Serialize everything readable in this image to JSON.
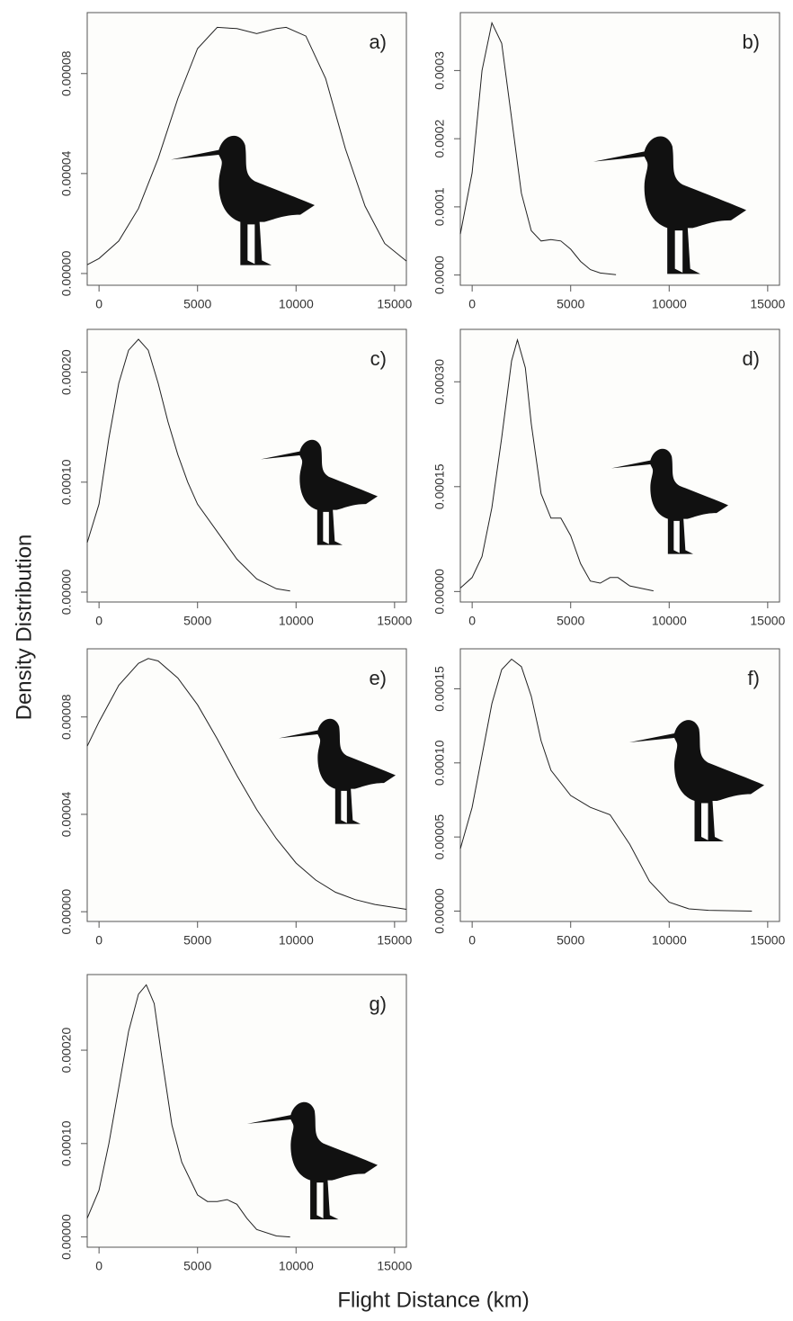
{
  "xlabel": "Flight Distance (km)",
  "ylabel": "Density Distribution",
  "chart_data": [
    {
      "type": "line",
      "label": "a)",
      "xlim": [
        -600,
        15600
      ],
      "ylim": [
        -4.7e-06,
        0.0001044
      ],
      "xticks": [
        0,
        5000,
        10000,
        15000
      ],
      "yticks": [
        {
          "value": 0,
          "label": "0.00000"
        },
        4e-05,
        8e-05
      ],
      "x": [
        -600,
        0,
        1000,
        2000,
        3000,
        4000,
        5000,
        6000,
        7000,
        8000,
        9000,
        9500,
        10500,
        11500,
        12500,
        13500,
        14500,
        15600
      ],
      "values": [
        3.5e-06,
        6e-06,
        1.3e-05,
        2.6e-05,
        4.6e-05,
        7e-05,
        9e-05,
        9.85e-05,
        9.8e-05,
        9.6e-05,
        9.8e-05,
        9.85e-05,
        9.5e-05,
        7.8e-05,
        5e-05,
        2.7e-05,
        1.2e-05,
        5e-06
      ]
    },
    {
      "type": "line",
      "label": "b)",
      "xlim": [
        -600,
        15600
      ],
      "ylim": [
        -1.5e-05,
        0.000385
      ],
      "xticks": [
        0,
        5000,
        10000,
        15000
      ],
      "yticks": [
        {
          "value": 0,
          "label": "0.0000"
        },
        0.0001,
        0.0002,
        0.0003
      ],
      "x": [
        -600,
        0,
        500,
        1000,
        1500,
        2000,
        2500,
        3000,
        3500,
        4000,
        4500,
        5000,
        5500,
        6000,
        6500,
        7300
      ],
      "values": [
        6e-05,
        0.00015,
        0.0003,
        0.00037,
        0.00034,
        0.00023,
        0.00012,
        6.5e-05,
        5e-05,
        5.2e-05,
        5e-05,
        3.8e-05,
        2e-05,
        8e-06,
        3e-06,
        5e-07
      ]
    },
    {
      "type": "line",
      "label": "c)",
      "xlim": [
        -600,
        15600
      ],
      "ylim": [
        -9e-06,
        0.000239
      ],
      "xticks": [
        0,
        5000,
        10000,
        15000
      ],
      "yticks": [
        {
          "value": 0,
          "label": "0.00000"
        },
        {
          "value": 0.0001,
          "label": "0.00010"
        },
        {
          "value": 0.0002,
          "label": "0.00020"
        }
      ],
      "x": [
        -600,
        0,
        500,
        1000,
        1500,
        2000,
        2500,
        3000,
        3500,
        4000,
        4500,
        5000,
        6000,
        7000,
        8000,
        9000,
        9700
      ],
      "values": [
        4.5e-05,
        8e-05,
        0.00014,
        0.00019,
        0.00022,
        0.00023,
        0.00022,
        0.00019,
        0.000155,
        0.000125,
        0.0001,
        8e-05,
        5.5e-05,
        3e-05,
        1.2e-05,
        3e-06,
        1e-06
      ]
    },
    {
      "type": "line",
      "label": "d)",
      "xlim": [
        -600,
        15600
      ],
      "ylim": [
        -1.5e-05,
        0.000375
      ],
      "xticks": [
        0,
        5000,
        10000,
        15000
      ],
      "yticks": [
        {
          "value": 0,
          "label": "0.00000"
        },
        0.00015,
        {
          "value": 0.0003,
          "label": "0.00030"
        }
      ],
      "x": [
        -600,
        0,
        500,
        1000,
        1500,
        2000,
        2300,
        2700,
        3000,
        3500,
        4000,
        4500,
        5000,
        5500,
        6000,
        6500,
        7000,
        7400,
        8000,
        9200
      ],
      "values": [
        5e-06,
        2e-05,
        5e-05,
        0.00012,
        0.00022,
        0.00033,
        0.00036,
        0.00032,
        0.00024,
        0.00014,
        0.000105,
        0.000105,
        8e-05,
        4e-05,
        1.5e-05,
        1.2e-05,
        2e-05,
        2e-05,
        8e-06,
        1e-06
      ]
    },
    {
      "type": "line",
      "label": "e)",
      "xlim": [
        -600,
        15600
      ],
      "ylim": [
        -4e-06,
        0.000108
      ],
      "xticks": [
        0,
        5000,
        10000,
        15000
      ],
      "yticks": [
        {
          "value": 0,
          "label": "0.00000"
        },
        4e-05,
        8e-05
      ],
      "x": [
        -600,
        0,
        1000,
        2000,
        2500,
        3000,
        4000,
        5000,
        6000,
        7000,
        8000,
        9000,
        10000,
        11000,
        12000,
        13000,
        14000,
        15600
      ],
      "values": [
        6.8e-05,
        7.8e-05,
        9.3e-05,
        0.000102,
        0.000104,
        0.000103,
        9.6e-05,
        8.5e-05,
        7.1e-05,
        5.6e-05,
        4.2e-05,
        3e-05,
        2e-05,
        1.3e-05,
        8e-06,
        5e-06,
        3e-06,
        1e-06
      ]
    },
    {
      "type": "line",
      "label": "f)",
      "xlim": [
        -600,
        15600
      ],
      "ylim": [
        -7e-06,
        0.000177
      ],
      "xticks": [
        0,
        5000,
        10000,
        15000
      ],
      "yticks": [
        {
          "value": 0,
          "label": "0.00000"
        },
        5e-05,
        {
          "value": 0.0001,
          "label": "0.00010"
        },
        0.00015
      ],
      "x": [
        -600,
        0,
        500,
        1000,
        1500,
        2000,
        2500,
        3000,
        3500,
        4000,
        5000,
        6000,
        7000,
        8000,
        9000,
        10000,
        11000,
        12000,
        14200
      ],
      "values": [
        4.2e-05,
        7e-05,
        0.000105,
        0.00014,
        0.000163,
        0.00017,
        0.000165,
        0.000145,
        0.000115,
        9.5e-05,
        7.8e-05,
        7e-05,
        6.5e-05,
        4.5e-05,
        2e-05,
        6e-06,
        1.5e-06,
        5e-07,
        0
      ]
    },
    {
      "type": "line",
      "label": "g)",
      "xlim": [
        -600,
        15600
      ],
      "ylim": [
        -1.1e-05,
        0.000281
      ],
      "xticks": [
        0,
        5000,
        10000,
        15000
      ],
      "yticks": [
        {
          "value": 0,
          "label": "0.00000"
        },
        {
          "value": 0.0001,
          "label": "0.00010"
        },
        {
          "value": 0.0002,
          "label": "0.00020"
        }
      ],
      "x": [
        -600,
        0,
        500,
        1000,
        1500,
        2000,
        2400,
        2800,
        3200,
        3700,
        4200,
        5000,
        5500,
        6000,
        6500,
        7000,
        7500,
        8000,
        9000,
        9700
      ],
      "values": [
        2e-05,
        5e-05,
        0.0001,
        0.00016,
        0.00022,
        0.00026,
        0.00027,
        0.00025,
        0.00019,
        0.00012,
        8e-05,
        4.5e-05,
        3.8e-05,
        3.8e-05,
        4e-05,
        3.5e-05,
        2e-05,
        8e-06,
        1e-06,
        0
      ]
    }
  ]
}
